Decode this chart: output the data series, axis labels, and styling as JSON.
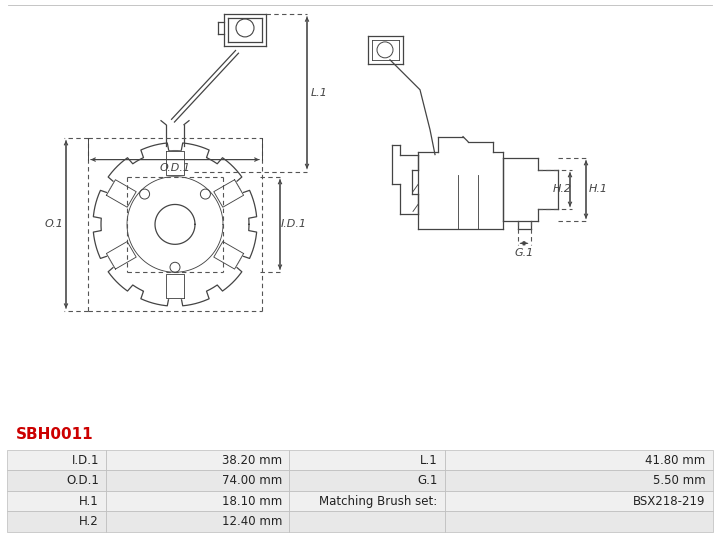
{
  "title": "SBH0011",
  "title_color": "#cc0000",
  "bg_color": "#ffffff",
  "table": {
    "rows": [
      [
        "I.D.1",
        "38.20 mm",
        "L.1",
        "41.80 mm"
      ],
      [
        "O.D.1",
        "74.00 mm",
        "G.1",
        "5.50 mm"
      ],
      [
        "H.1",
        "18.10 mm",
        "Matching Brush set:",
        "BSX218-219"
      ],
      [
        "H.2",
        "12.40 mm",
        "",
        ""
      ]
    ],
    "col_starts": [
      0.0,
      0.14,
      0.4,
      0.62
    ],
    "col_ends": [
      0.14,
      0.4,
      0.62,
      1.0
    ],
    "cell_bg": [
      "#f0f0f0",
      "#e8e8e8"
    ],
    "border_color": "#bbbbbb",
    "text_color": "#222222",
    "font_size": 8.5
  },
  "lc": "#444444",
  "dc": "#444444",
  "dlc": "#555555",
  "anno_fs": 8,
  "lw": 0.9,
  "dim_lw": 0.7,
  "labels": {
    "L1": "L.1",
    "OD1": "O.D.1",
    "ID1": "I.D.1",
    "O1": "O.1",
    "H1": "H.1",
    "H2": "H.2",
    "G1": "G.1"
  }
}
